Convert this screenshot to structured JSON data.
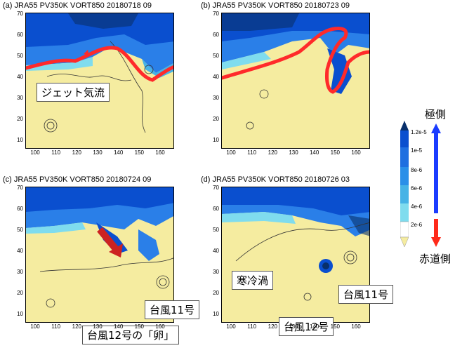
{
  "panels": [
    {
      "id": "a",
      "title": "(a) JRA55  PV350K  VORT850  20180718 09"
    },
    {
      "id": "b",
      "title": "(b) JRA55  PV350K  VORT850  20180723 09"
    },
    {
      "id": "c",
      "title": "(c) JRA55  PV350K  VORT850  20180724 09"
    },
    {
      "id": "d",
      "title": "(d) JRA55  PV350K  VORT850  20180726 03"
    }
  ],
  "lat_ticks": [
    "70",
    "60",
    "50",
    "40",
    "30",
    "20",
    "10"
  ],
  "lon_ticks": [
    "100",
    "110",
    "120",
    "130",
    "140",
    "150",
    "160"
  ],
  "annotations": {
    "jet_stream": "ジェット気流",
    "typhoon11_c": "台風11号",
    "typhoon12_egg": "台風12号の「卵」",
    "cold_low": "寒冷渦",
    "typhoon11_d": "台風11号",
    "typhoon12_d": "台風12号"
  },
  "colorbar": {
    "ticks": [
      "1.2e-5",
      "1e-5",
      "8e-6",
      "6e-6",
      "4e-6",
      "2e-6"
    ],
    "colors": [
      "#08306b",
      "#0a4fcf",
      "#2a7fe8",
      "#46b3e6",
      "#7fdcee",
      "#ffffff",
      "#f5eca0"
    ],
    "pole_label": "極側",
    "equator_label": "赤道側"
  }
}
